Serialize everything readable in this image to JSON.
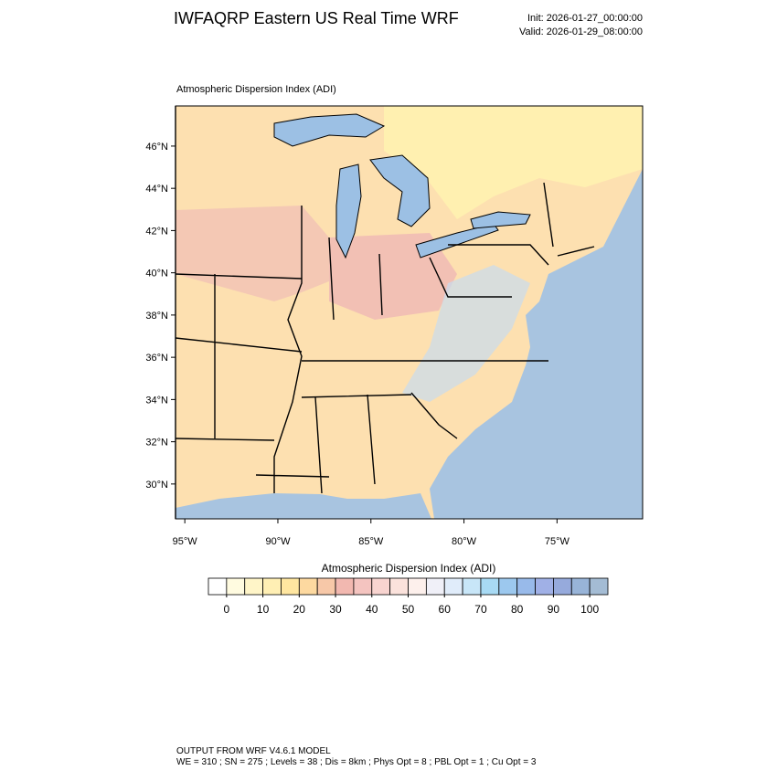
{
  "header": {
    "title": "IWFAQRP Eastern US Real Time WRF",
    "init": "Init: 2026-01-27_00:00:00",
    "valid": "Valid: 2026-01-29_08:00:00"
  },
  "map": {
    "subtitle": "Atmospheric Dispersion Index   (ADI)",
    "lon_lim": [
      -95.5,
      -70.4
    ],
    "lat_lim": [
      28.35,
      47.9
    ],
    "lat_ticks": [
      {
        "value": 30,
        "label": "30°N"
      },
      {
        "value": 32,
        "label": "32°N"
      },
      {
        "value": 34,
        "label": "34°N"
      },
      {
        "value": 36,
        "label": "36°N"
      },
      {
        "value": 38,
        "label": "38°N"
      },
      {
        "value": 40,
        "label": "40°N"
      },
      {
        "value": 42,
        "label": "42°N"
      },
      {
        "value": 44,
        "label": "44°N"
      },
      {
        "value": 46,
        "label": "46°N"
      }
    ],
    "lon_ticks": [
      {
        "value": -95,
        "label": "95°W"
      },
      {
        "value": -90,
        "label": "90°W"
      },
      {
        "value": -85,
        "label": "85°W"
      },
      {
        "value": -80,
        "label": "80°W"
      },
      {
        "value": -75,
        "label": "75°W"
      }
    ]
  },
  "colorbar": {
    "title": "Atmospheric Dispersion Index  (ADI)",
    "lim": [
      -5,
      105
    ],
    "ticks": [
      0,
      10,
      20,
      30,
      40,
      50,
      60,
      70,
      80,
      90,
      100
    ],
    "colors": [
      "#ffffff",
      "#fffbe0",
      "#fff5c8",
      "#ffefb4",
      "#ffe6a0",
      "#fdd9a0",
      "#f7c8a8",
      "#f2b8b0",
      "#f4c4c0",
      "#f8d4d0",
      "#fbe2dc",
      "#fdf0ec",
      "#f0f0f8",
      "#e0ecfa",
      "#c8e6f8",
      "#a8daf4",
      "#9cc8ee",
      "#98baea",
      "#a0b0e6",
      "#96aadc",
      "#98b4d8",
      "#a4bcd4"
    ]
  },
  "footer": {
    "line1": "OUTPUT FROM WRF V4.6.1 MODEL",
    "line2": "WE = 310 ; SN = 275 ; Levels = 38 ; Dis = 8km ; Phys Opt = 8 ; PBL Opt = 1 ; Cu Opt = 3"
  }
}
